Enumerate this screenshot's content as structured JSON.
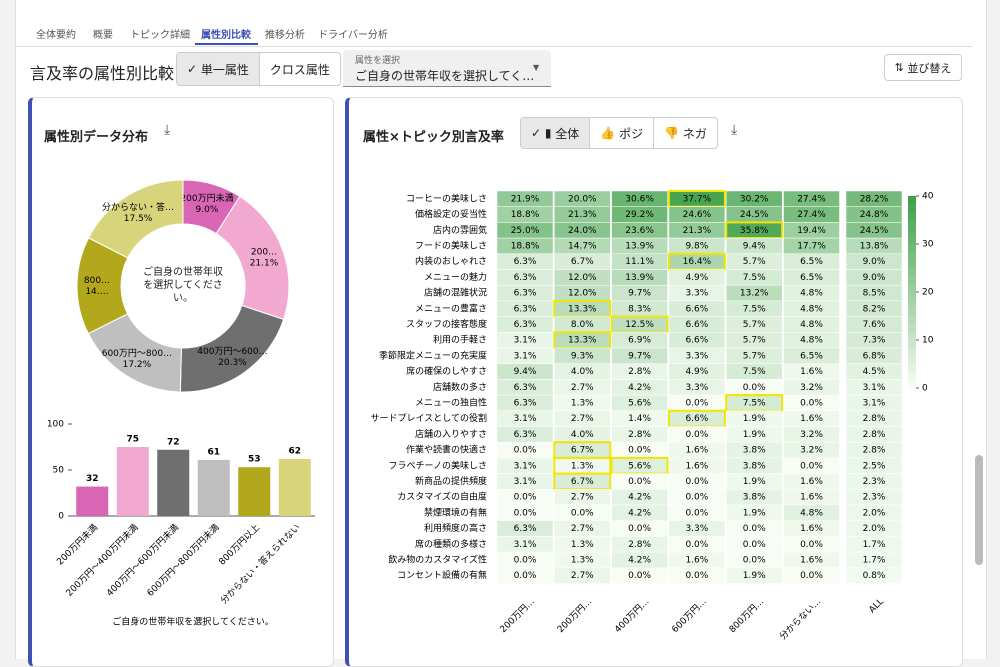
{
  "ui": {
    "tabs": [
      "全体要約",
      "概要",
      "トピック詳細",
      "属性別比較",
      "推移分析",
      "ドライバー分析"
    ],
    "active_tab": 3,
    "heading": "言及率の属性別比較",
    "mode_toggle": [
      "単一属性",
      "クロス属性"
    ],
    "select_label": "属性を選択",
    "select_value": "ご自身の世帯年収を選択してく…",
    "sort_button": "並び替え",
    "left_title": "属性別データ分布",
    "right_title": "属性×トピック別言及率",
    "sentiment_toggle": [
      "全体",
      "ポジ",
      "ネガ"
    ]
  },
  "chart_data": [
    {
      "type": "pie",
      "donut": true,
      "center_label": "ご自身の世帯年収を選択してください。",
      "labels": [
        "200万円未満",
        "200…",
        "400万円〜600…",
        "600万円〜800…",
        "800…",
        "分からない・答…"
      ],
      "values": [
        9.0,
        21.1,
        20.3,
        17.2,
        14.9,
        17.5
      ],
      "value_labels": [
        "9.0%",
        "21.1%",
        "20.3%",
        "17.2%",
        "14.…",
        "17.5%"
      ],
      "colors": [
        "#d966b5",
        "#f2a9cf",
        "#6f6f6f",
        "#bfbfbf",
        "#b3a81c",
        "#d8d47c"
      ]
    },
    {
      "type": "bar",
      "categories": [
        "200万円未満",
        "200万円〜400万円未満",
        "400万円〜600万円未満",
        "600万円〜800万円未満",
        "800万円以上",
        "分からない・答えられない"
      ],
      "values": [
        32,
        75,
        72,
        61,
        53,
        62
      ],
      "colors": [
        "#d966b5",
        "#f2a9cf",
        "#6f6f6f",
        "#bfbfbf",
        "#b3a81c",
        "#d8d47c"
      ],
      "ylim": [
        0,
        100
      ],
      "yticks": [
        0,
        50,
        100
      ],
      "x_label": "ご自身の世帯年収を選択してください。"
    },
    {
      "type": "heatmap",
      "rows": [
        "コーヒーの美味しさ",
        "価格設定の妥当性",
        "店内の雰囲気",
        "フードの美味しさ",
        "内装のおしゃれさ",
        "メニューの魅力",
        "店舗の混雑状況",
        "メニューの豊富さ",
        "スタッフの接客態度",
        "利用の手軽さ",
        "季節限定メニューの充実度",
        "席の確保のしやすさ",
        "店舗数の多さ",
        "メニューの独自性",
        "サードプレイスとしての役割",
        "店舗の入りやすさ",
        "作業や読書の快適さ",
        "フラペチーノの美味しさ",
        "新商品の提供頻度",
        "カスタマイズの自由度",
        "禁煙環境の有無",
        "利用頻度の高さ",
        "席の種類の多様さ",
        "飲み物のカスタマイズ性",
        "コンセント設備の有無"
      ],
      "columns": [
        "200万円…",
        "200万円…",
        "400万円…",
        "600万円…",
        "800万円…",
        "分からない…",
        "ALL"
      ],
      "values": [
        [
          21.9,
          20.0,
          30.6,
          37.7,
          30.2,
          27.4,
          28.2
        ],
        [
          18.8,
          21.3,
          29.2,
          24.6,
          24.5,
          27.4,
          24.8
        ],
        [
          25.0,
          24.0,
          23.6,
          21.3,
          35.8,
          19.4,
          24.5
        ],
        [
          18.8,
          14.7,
          13.9,
          9.8,
          9.4,
          17.7,
          13.8
        ],
        [
          6.3,
          6.7,
          11.1,
          16.4,
          5.7,
          6.5,
          9.0
        ],
        [
          6.3,
          12.0,
          13.9,
          4.9,
          7.5,
          6.5,
          9.0
        ],
        [
          6.3,
          12.0,
          9.7,
          3.3,
          13.2,
          4.8,
          8.5
        ],
        [
          6.3,
          13.3,
          8.3,
          6.6,
          7.5,
          4.8,
          8.2
        ],
        [
          6.3,
          8.0,
          12.5,
          6.6,
          5.7,
          4.8,
          7.6
        ],
        [
          3.1,
          13.3,
          6.9,
          6.6,
          5.7,
          4.8,
          7.3
        ],
        [
          3.1,
          9.3,
          9.7,
          3.3,
          5.7,
          6.5,
          6.8
        ],
        [
          9.4,
          4.0,
          2.8,
          4.9,
          7.5,
          1.6,
          4.5
        ],
        [
          6.3,
          2.7,
          4.2,
          3.3,
          0.0,
          3.2,
          3.1
        ],
        [
          6.3,
          1.3,
          5.6,
          0.0,
          7.5,
          0.0,
          3.1
        ],
        [
          3.1,
          2.7,
          1.4,
          6.6,
          1.9,
          1.6,
          2.8
        ],
        [
          6.3,
          4.0,
          2.8,
          0.0,
          1.9,
          3.2,
          2.8
        ],
        [
          0.0,
          6.7,
          0.0,
          1.6,
          3.8,
          3.2,
          2.8
        ],
        [
          3.1,
          1.3,
          5.6,
          1.6,
          3.8,
          0.0,
          2.5
        ],
        [
          3.1,
          6.7,
          0.0,
          0.0,
          1.9,
          1.6,
          2.3
        ],
        [
          0.0,
          2.7,
          4.2,
          0.0,
          3.8,
          1.6,
          2.3
        ],
        [
          0.0,
          0.0,
          4.2,
          0.0,
          1.9,
          4.8,
          2.0
        ],
        [
          6.3,
          2.7,
          0.0,
          3.3,
          0.0,
          1.6,
          2.0
        ],
        [
          3.1,
          1.3,
          2.8,
          0.0,
          0.0,
          0.0,
          1.7
        ],
        [
          0.0,
          1.3,
          4.2,
          1.6,
          0.0,
          1.6,
          1.7
        ],
        [
          0.0,
          2.7,
          0.0,
          0.0,
          1.9,
          0.0,
          0.8
        ]
      ],
      "value_labels": [
        [
          "21.9%",
          "20.0%",
          "30.6%",
          "37.7%",
          "30.2%",
          "27.4%",
          "28.2%"
        ],
        [
          "18.8%",
          "21.3%",
          "29.2%",
          "24.6%",
          "24.5%",
          "27.4%",
          "24.8%"
        ],
        [
          "25.0%",
          "24.0%",
          "23.6%",
          "21.3%",
          "35.8%",
          "19.4%",
          "24.5%"
        ],
        [
          "18.8%",
          "14.7%",
          "13.9%",
          "9.8%",
          "9.4%",
          "17.7%",
          "13.8%"
        ],
        [
          "6.3%",
          "6.7%",
          "11.1%",
          "16.4%",
          "5.7%",
          "6.5%",
          "9.0%"
        ],
        [
          "6.3%",
          "12.0%",
          "13.9%",
          "4.9%",
          "7.5%",
          "6.5%",
          "9.0%"
        ],
        [
          "6.3%",
          "12.0%",
          "9.7%",
          "3.3%",
          "13.2%",
          "4.8%",
          "8.5%"
        ],
        [
          "6.3%",
          "13.3%",
          "8.3%",
          "6.6%",
          "7.5%",
          "4.8%",
          "8.2%"
        ],
        [
          "6.3%",
          "8.0%",
          "12.5%",
          "6.6%",
          "5.7%",
          "4.8%",
          "7.6%"
        ],
        [
          "3.1%",
          "13.3%",
          "6.9%",
          "6.6%",
          "5.7%",
          "4.8%",
          "7.3%"
        ],
        [
          "3.1%",
          "9.3%",
          "9.7%",
          "3.3%",
          "5.7%",
          "6.5%",
          "6.8%"
        ],
        [
          "9.4%",
          "4.0%",
          "2.8%",
          "4.9%",
          "7.5%",
          "1.6%",
          "4.5%"
        ],
        [
          "6.3%",
          "2.7%",
          "4.2%",
          "3.3%",
          "0.0%",
          "3.2%",
          "3.1%"
        ],
        [
          "6.3%",
          "1.3%",
          "5.6%",
          "0.0%",
          "7.5%",
          "0.0%",
          "3.1%"
        ],
        [
          "3.1%",
          "2.7%",
          "1.4%",
          "6.6%",
          "1.9%",
          "1.6%",
          "2.8%"
        ],
        [
          "6.3%",
          "4.0%",
          "2.8%",
          "0.0%",
          "1.9%",
          "3.2%",
          "2.8%"
        ],
        [
          "0.0%",
          "6.7%",
          "0.0%",
          "1.6%",
          "3.8%",
          "3.2%",
          "2.8%"
        ],
        [
          "3.1%",
          "1.3%",
          "5.6%",
          "1.6%",
          "3.8%",
          "0.0%",
          "2.5%"
        ],
        [
          "3.1%",
          "6.7%",
          "0.0%",
          "0.0%",
          "1.9%",
          "1.6%",
          "2.3%"
        ],
        [
          "0.0%",
          "2.7%",
          "4.2%",
          "0.0%",
          "3.8%",
          "1.6%",
          "2.3%"
        ],
        [
          "0.0%",
          "0.0%",
          "4.2%",
          "0.0%",
          "1.9%",
          "4.8%",
          "2.0%"
        ],
        [
          "6.3%",
          "2.7%",
          "0.0%",
          "3.3%",
          "0.0%",
          "1.6%",
          "2.0%"
        ],
        [
          "3.1%",
          "1.3%",
          "2.8%",
          "0.0%",
          "0.0%",
          "0.0%",
          "1.7%"
        ],
        [
          "0.0%",
          "1.3%",
          "4.2%",
          "1.6%",
          "0.0%",
          "1.6%",
          "1.7%"
        ],
        [
          "0.0%",
          "2.7%",
          "0.0%",
          "0.0%",
          "1.9%",
          "0.0%",
          "0.8%"
        ]
      ],
      "highlights": [
        [
          0,
          3
        ],
        [
          2,
          4
        ],
        [
          4,
          3
        ],
        [
          7,
          1
        ],
        [
          8,
          2
        ],
        [
          9,
          1
        ],
        [
          13,
          4
        ],
        [
          14,
          3
        ],
        [
          16,
          1
        ],
        [
          17,
          1
        ],
        [
          17,
          2
        ],
        [
          18,
          1
        ]
      ],
      "highlight_color": "#f2e600",
      "color_range": [
        "#f7fcf5",
        "#3e9f47"
      ],
      "clim": [
        0,
        40
      ],
      "cticks": [
        0,
        10,
        20,
        30,
        40
      ]
    }
  ]
}
